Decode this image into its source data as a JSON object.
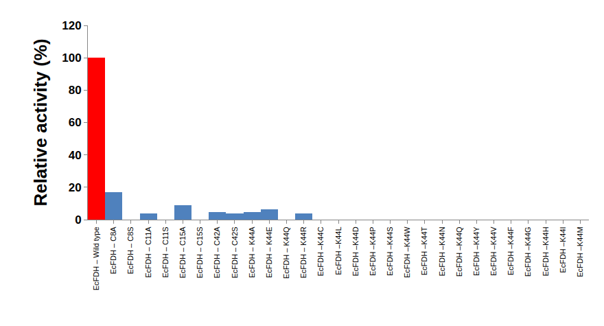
{
  "chart_data": {
    "type": "bar",
    "y_label": "Relative activity (%)",
    "categories": [
      "EcFDH – Wild type",
      "EcFDH – C8A",
      "EcFDH – C8S",
      "EcFDH – C11A",
      "EcFDH – C11S",
      "EcFDH – C15A",
      "EcFDH – C15S",
      "EcFDH – C42A",
      "EcFDH – C42S",
      "EcFDH – K44A",
      "EcFDH – K44E",
      "EcFDH – K44Q",
      "EcFDH – K44R",
      "EcFDH –K44C",
      "EcFDH –K44L",
      "EcFDH –K44D",
      "EcFDH –K44P",
      "EcFDH –K44S",
      "EcFDH –K44W",
      "EcFDH –K44T",
      "EcFDH –K44N",
      "EcFDH –K44Q",
      "EcFDH –K44Y",
      "EcFDH –K44V",
      "EcFDH –K44F",
      "EcFDH –K44G",
      "EcFDH –K44H",
      "EcFDH –K44I",
      "EcFDH –K44M"
    ],
    "values": [
      100,
      17,
      0,
      4,
      0,
      9,
      0,
      4.5,
      4,
      4.5,
      6.5,
      0,
      4,
      0,
      0,
      0,
      0,
      0,
      0,
      0,
      0,
      0,
      0,
      0,
      0,
      0,
      0,
      0,
      0
    ],
    "colors": [
      "#ff0000",
      "#4f81bd",
      "#4f81bd",
      "#4f81bd",
      "#4f81bd",
      "#4f81bd",
      "#4f81bd",
      "#4f81bd",
      "#4f81bd",
      "#4f81bd",
      "#4f81bd",
      "#4f81bd",
      "#4f81bd",
      "#4f81bd",
      "#4f81bd",
      "#4f81bd",
      "#4f81bd",
      "#4f81bd",
      "#4f81bd",
      "#4f81bd",
      "#4f81bd",
      "#4f81bd",
      "#4f81bd",
      "#4f81bd",
      "#4f81bd",
      "#4f81bd",
      "#4f81bd",
      "#4f81bd",
      "#4f81bd"
    ],
    "ylim": [
      0,
      120
    ],
    "yticks": [
      0,
      20,
      40,
      60,
      80,
      100,
      120
    ],
    "grid": false
  }
}
